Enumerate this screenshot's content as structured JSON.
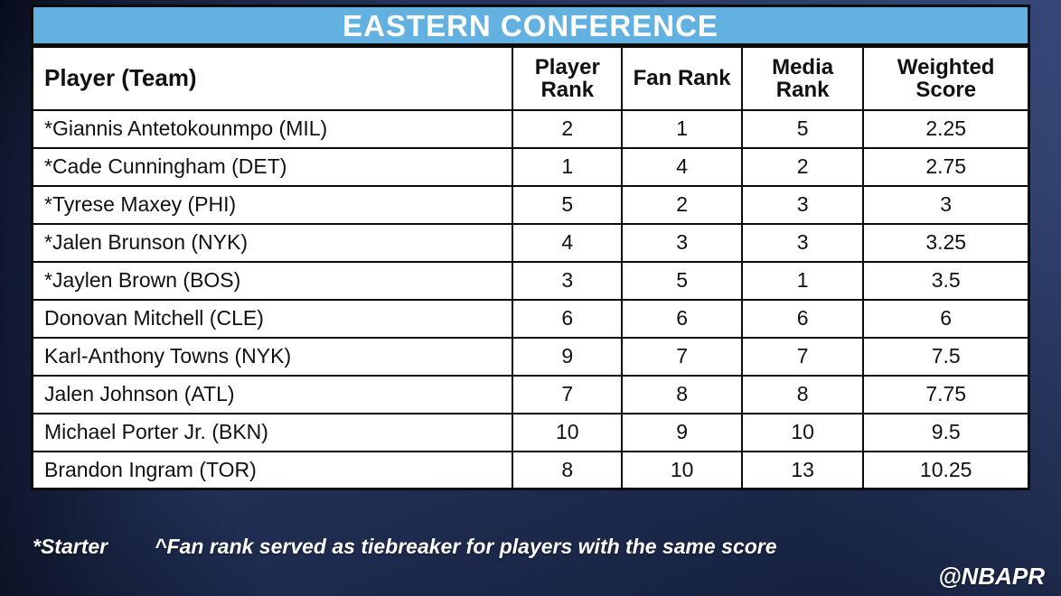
{
  "title": "EASTERN CONFERENCE",
  "chart_data": {
    "type": "table",
    "title": "EASTERN CONFERENCE",
    "columns": [
      "Player (Team)",
      "Player Rank",
      "Fan Rank",
      "Media Rank",
      "Weighted Score"
    ],
    "rows": [
      [
        "*Giannis Antetokounmpo (MIL)",
        "2",
        "1",
        "5",
        "2.25"
      ],
      [
        "*Cade Cunningham (DET)",
        "1",
        "4",
        "2",
        "2.75"
      ],
      [
        "*Tyrese Maxey (PHI)",
        "5",
        "2",
        "3",
        "3"
      ],
      [
        "*Jalen Brunson (NYK)",
        "4",
        "3",
        "3",
        "3.25"
      ],
      [
        "*Jaylen Brown (BOS)",
        "3",
        "5",
        "1",
        "3.5"
      ],
      [
        "Donovan Mitchell (CLE)",
        "6",
        "6",
        "6",
        "6"
      ],
      [
        "Karl-Anthony Towns (NYK)",
        "9",
        "7",
        "7",
        "7.5"
      ],
      [
        "Jalen Johnson (ATL)",
        "7",
        "8",
        "8",
        "7.75"
      ],
      [
        "Michael Porter Jr. (BKN)",
        "10",
        "9",
        "10",
        "9.5"
      ],
      [
        "Brandon Ingram (TOR)",
        "8",
        "10",
        "13",
        "10.25"
      ]
    ]
  },
  "footer": {
    "starter_note": "*Starter",
    "tiebreaker_note": "^Fan rank served as tiebreaker for players with the same score",
    "handle": "@NBAPR"
  },
  "colors": {
    "title_bar": "#62b1e0",
    "background": "#223158",
    "table_background": "#ffffff",
    "border": "#0b0b0b",
    "title_text": "#ffffff",
    "footer_text": "#ffffff"
  }
}
